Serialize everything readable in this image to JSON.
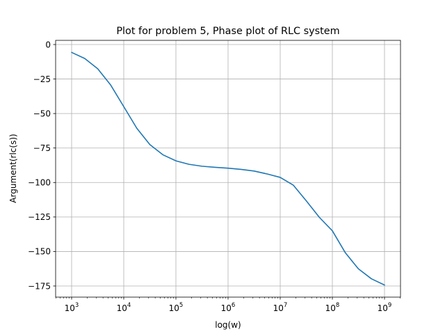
{
  "chart_data": {
    "type": "line",
    "title": "Plot for problem 5, Phase plot of RLC system",
    "xlabel": "log(w)",
    "ylabel": "Argument(rlc(s))",
    "xscale": "log",
    "xlim": [
      1000,
      1000000000
    ],
    "ylim": [
      -180,
      2
    ],
    "grid": true,
    "x_ticks": [
      {
        "base": "10",
        "exp": "3"
      },
      {
        "base": "10",
        "exp": "4"
      },
      {
        "base": "10",
        "exp": "5"
      },
      {
        "base": "10",
        "exp": "6"
      },
      {
        "base": "10",
        "exp": "7"
      },
      {
        "base": "10",
        "exp": "8"
      },
      {
        "base": "10",
        "exp": "9"
      }
    ],
    "x_tick_values": [
      1000,
      10000,
      100000,
      1000000,
      10000000,
      100000000,
      1000000000
    ],
    "y_ticks": [
      "0",
      "−25",
      "−50",
      "−75",
      "−100",
      "−125",
      "−150",
      "−175"
    ],
    "y_tick_values": [
      0,
      -25,
      -50,
      -75,
      -100,
      -125,
      -150,
      -175
    ],
    "series": [
      {
        "color": "#1f77b4",
        "x": [
          1000,
          1780,
          3160,
          5620,
          10000,
          17800,
          31600,
          56200,
          100000,
          178000,
          316000,
          562000,
          1000000,
          1780000,
          3160000,
          5620000,
          10000000,
          17800000,
          31600000,
          56200000,
          100000000,
          178000000,
          316000000,
          562000000,
          1000000000
        ],
        "values": [
          -5.7,
          -10.1,
          -17.5,
          -29.4,
          -45.0,
          -60.7,
          -72.5,
          -79.9,
          -84.3,
          -86.8,
          -88.2,
          -89.0,
          -89.6,
          -90.5,
          -91.7,
          -93.8,
          -96.3,
          -101.9,
          -113.3,
          -125.2,
          -135.0,
          -151.0,
          -162.6,
          -169.8,
          -174.3
        ]
      }
    ]
  }
}
